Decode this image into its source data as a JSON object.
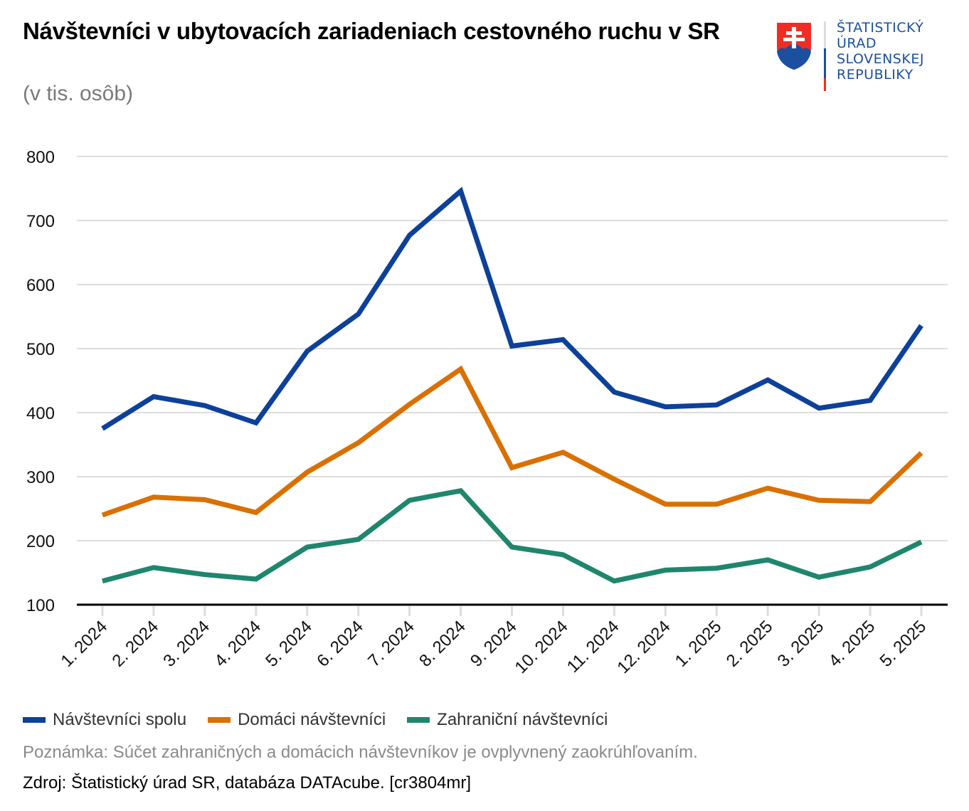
{
  "title": "Návštevníci v ubytovacích zariadeniach cestovného ruchu v SR",
  "subtitle": "(v tis. osôb)",
  "logo": {
    "lines": [
      "ŠTATISTICKÝ",
      "ÚRAD",
      "SLOVENSKEJ",
      "REPUBLIKY"
    ],
    "icon": "slovak-coat-of-arms-icon"
  },
  "note": "Poznámka: Súčet zahraničných a domácich návštevníkov je ovplyvnený zaokrúhľovaním.",
  "source": "Zdroj: Štatistický úrad SR, databáza DATAcube. [cr3804mr]",
  "colors": {
    "spolu": "#0d4199",
    "domaci": "#d97000",
    "zahranicni": "#1f866d",
    "grid": "#dddddd",
    "axis": "#000000",
    "logo_blue": "#1b4fa0",
    "logo_red": "#ee2e24"
  },
  "chart_data": {
    "type": "line",
    "title": "Návštevníci v ubytovacích zariadeniach cestovného ruchu v SR",
    "subtitle": "(v tis. osôb)",
    "xlabel": "",
    "ylabel": "",
    "ylim": [
      100,
      800
    ],
    "yticks": [
      100,
      200,
      300,
      400,
      500,
      600,
      700,
      800
    ],
    "grid": true,
    "legend_position": "bottom-left",
    "categories": [
      "1. 2024",
      "2. 2024",
      "3. 2024",
      "4. 2024",
      "5. 2024",
      "6. 2024",
      "7. 2024",
      "8. 2024",
      "9. 2024",
      "10. 2024",
      "11. 2024",
      "12. 2024",
      "1. 2025",
      "2. 2025",
      "3. 2025",
      "4. 2025",
      "5. 2025"
    ],
    "series": [
      {
        "name": "Návštevníci spolu",
        "color_key": "spolu",
        "values": [
          375,
          425,
          411,
          384,
          496,
          554,
          677,
          746,
          504,
          514,
          432,
          409,
          412,
          451,
          407,
          419,
          536
        ]
      },
      {
        "name": "Domáci návštevníci",
        "color_key": "domaci",
        "values": [
          240,
          268,
          264,
          244,
          307,
          353,
          413,
          468,
          314,
          338,
          296,
          257,
          257,
          282,
          263,
          261,
          337
        ]
      },
      {
        "name": "Zahraniční návštevníci",
        "color_key": "zahranicni",
        "values": [
          137,
          158,
          147,
          140,
          190,
          202,
          263,
          278,
          190,
          178,
          137,
          154,
          157,
          170,
          143,
          159,
          198
        ]
      }
    ]
  }
}
